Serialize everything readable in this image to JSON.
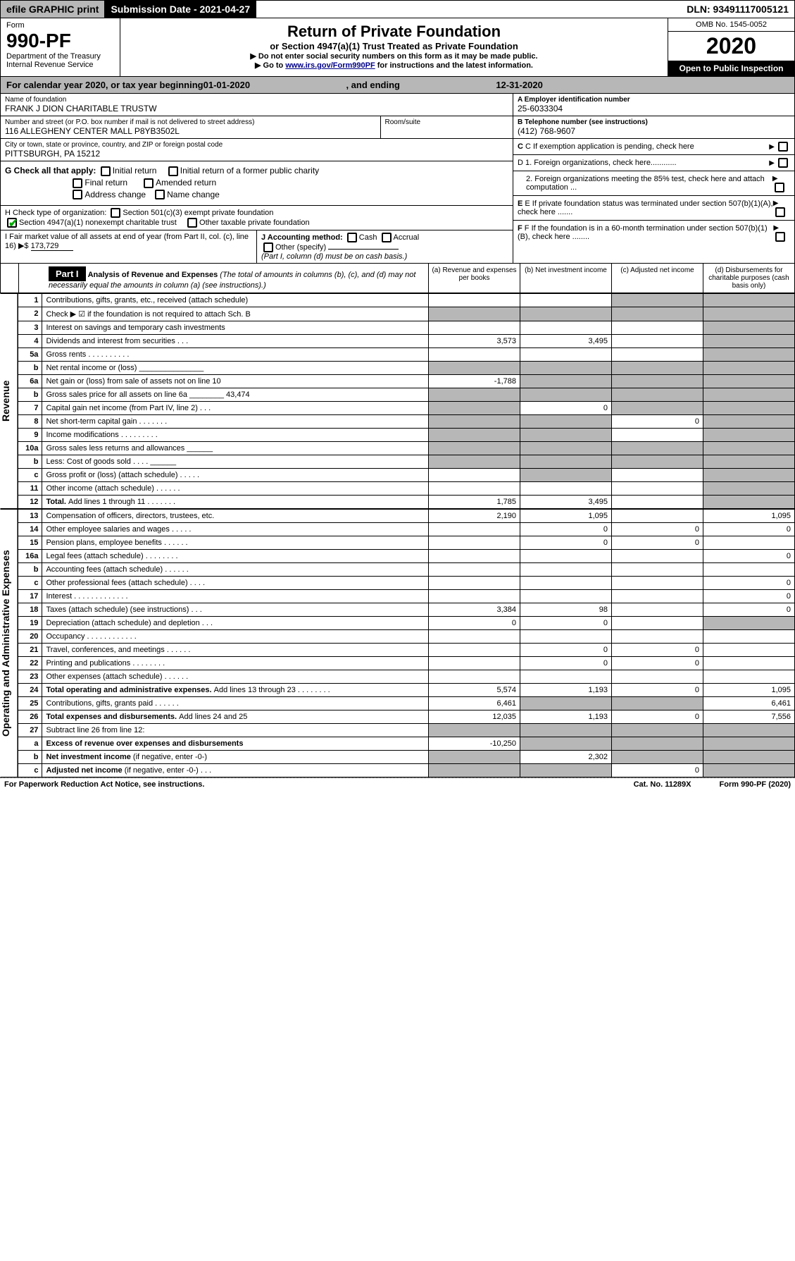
{
  "topbar": {
    "efile": "efile GRAPHIC print",
    "submission": "Submission Date - 2021-04-27",
    "dln": "DLN: 93491117005121"
  },
  "header": {
    "form_label": "Form",
    "form_number": "990-PF",
    "dept": "Department of the Treasury",
    "irs": "Internal Revenue Service",
    "title": "Return of Private Foundation",
    "subtitle": "or Section 4947(a)(1) Trust Treated as Private Foundation",
    "note1": "▶ Do not enter social security numbers on this form as it may be made public.",
    "note2_pre": "▶ Go to ",
    "note2_link": "www.irs.gov/Form990PF",
    "note2_post": " for instructions and the latest information.",
    "omb": "OMB No. 1545-0052",
    "year": "2020",
    "open": "Open to Public Inspection"
  },
  "calendar": {
    "pre": "For calendar year 2020, or tax year beginning ",
    "begin": "01-01-2020",
    "mid": " , and ending ",
    "end": "12-31-2020"
  },
  "name": {
    "label": "Name of foundation",
    "value": "FRANK J DION CHARITABLE TRUSTW"
  },
  "ein": {
    "label": "A Employer identification number",
    "value": "25-6033304"
  },
  "address": {
    "label": "Number and street (or P.O. box number if mail is not delivered to street address)",
    "value": "116 ALLEGHENY CENTER MALL P8YB3502L",
    "room_label": "Room/suite"
  },
  "phone": {
    "label": "B Telephone number (see instructions)",
    "value": "(412) 768-9607"
  },
  "city": {
    "label": "City or town, state or province, country, and ZIP or foreign postal code",
    "value": "PITTSBURGH, PA  15212"
  },
  "exemption": "C If exemption application is pending, check here",
  "g": {
    "label": "G Check all that apply:",
    "initial": "Initial return",
    "initial_former": "Initial return of a former public charity",
    "final": "Final return",
    "amended": "Amended return",
    "address": "Address change",
    "name": "Name change"
  },
  "d": {
    "d1": "D 1. Foreign organizations, check here............",
    "d2": "2. Foreign organizations meeting the 85% test, check here and attach computation ..."
  },
  "h": {
    "label": "H Check type of organization:",
    "s501": "Section 501(c)(3) exempt private foundation",
    "s4947": "Section 4947(a)(1) nonexempt charitable trust",
    "other": "Other taxable private foundation"
  },
  "e": "E If private foundation status was terminated under section 507(b)(1)(A), check here .......",
  "i": {
    "label": "I Fair market value of all assets at end of year (from Part II, col. (c), line 16) ▶$",
    "value": "173,729"
  },
  "j": {
    "label": "J Accounting method:",
    "cash": "Cash",
    "accrual": "Accrual",
    "other": "Other (specify)",
    "note": "(Part I, column (d) must be on cash basis.)"
  },
  "f": "F If the foundation is in a 60-month termination under section 507(b)(1)(B), check here ........",
  "part1": {
    "label": "Part I",
    "title": "Analysis of Revenue and Expenses",
    "note": "(The total of amounts in columns (b), (c), and (d) may not necessarily equal the amounts in column (a) (see instructions).)",
    "col_a": "(a) Revenue and expenses per books",
    "col_b": "(b) Net investment income",
    "col_c": "(c) Adjusted net income",
    "col_d": "(d) Disbursements for charitable purposes (cash basis only)"
  },
  "side_revenue": "Revenue",
  "side_expenses": "Operating and Administrative Expenses",
  "rows": [
    {
      "n": "1",
      "desc": "Contributions, gifts, grants, etc., received (attach schedule)",
      "a": "",
      "b": "",
      "c_grey": true,
      "d_grey": true
    },
    {
      "n": "2",
      "desc": "Check ▶ ☑ if the foundation is not required to attach Sch. B",
      "a_grey": true,
      "b_grey": true,
      "c_grey": true,
      "d_grey": true
    },
    {
      "n": "3",
      "desc": "Interest on savings and temporary cash investments",
      "a": "",
      "b": "",
      "c": "",
      "d_grey": true
    },
    {
      "n": "4",
      "desc": "Dividends and interest from securities   .   .   .",
      "a": "3,573",
      "b": "3,495",
      "c": "",
      "d_grey": true
    },
    {
      "n": "5a",
      "desc": "Gross rents   .   .   .   .   .   .   .   .   .   .",
      "a": "",
      "b": "",
      "c": "",
      "d_grey": true
    },
    {
      "n": "b",
      "desc": "Net rental income or (loss)  _______________",
      "a_grey": true,
      "b_grey": true,
      "c_grey": true,
      "d_grey": true
    },
    {
      "n": "6a",
      "desc": "Net gain or (loss) from sale of assets not on line 10",
      "a": "-1,788",
      "b_grey": true,
      "c_grey": true,
      "d_grey": true
    },
    {
      "n": "b",
      "desc": "Gross sales price for all assets on line 6a ________ 43,474",
      "a_grey": true,
      "b_grey": true,
      "c_grey": true,
      "d_grey": true
    },
    {
      "n": "7",
      "desc": "Capital gain net income (from Part IV, line 2)   .   .   .",
      "a_grey": true,
      "b": "0",
      "c_grey": true,
      "d_grey": true
    },
    {
      "n": "8",
      "desc": "Net short-term capital gain   .   .   .   .   .   .   .",
      "a_grey": true,
      "b_grey": true,
      "c": "0",
      "d_grey": true
    },
    {
      "n": "9",
      "desc": "Income modifications   .   .   .   .   .   .   .   .   .",
      "a_grey": true,
      "b_grey": true,
      "c": "",
      "d_grey": true
    },
    {
      "n": "10a",
      "desc": "Gross sales less returns and allowances  ______",
      "a_grey": true,
      "b_grey": true,
      "c_grey": true,
      "d_grey": true
    },
    {
      "n": "b",
      "desc": "Less: Cost of goods sold   .   .   .   .  ______",
      "a_grey": true,
      "b_grey": true,
      "c_grey": true,
      "d_grey": true
    },
    {
      "n": "c",
      "desc": "Gross profit or (loss) (attach schedule)   .   .   .   .   .",
      "a": "",
      "b_grey": true,
      "c": "",
      "d_grey": true
    },
    {
      "n": "11",
      "desc": "Other income (attach schedule)   .   .   .   .   .   .",
      "a": "",
      "b": "",
      "c": "",
      "d_grey": true
    },
    {
      "n": "12",
      "desc_bold": "Total. ",
      "desc": "Add lines 1 through 11   .   .   .   .   .   .   .",
      "a": "1,785",
      "b": "3,495",
      "c": "",
      "d_grey": true
    },
    {
      "n": "13",
      "desc": "Compensation of officers, directors, trustees, etc.",
      "a": "2,190",
      "b": "1,095",
      "c": "",
      "d": "1,095"
    },
    {
      "n": "14",
      "desc": "Other employee salaries and wages   .   .   .   .   .",
      "a": "",
      "b": "0",
      "c": "0",
      "d": "0"
    },
    {
      "n": "15",
      "desc": "Pension plans, employee benefits   .   .   .   .   .   .",
      "a": "",
      "b": "0",
      "c": "0",
      "d": ""
    },
    {
      "n": "16a",
      "desc": "Legal fees (attach schedule)   .   .   .   .   .   .   .   .",
      "a": "",
      "b": "",
      "c": "",
      "d": "0"
    },
    {
      "n": "b",
      "desc": "Accounting fees (attach schedule)   .   .   .   .   .   .",
      "a": "",
      "b": "",
      "c": "",
      "d": ""
    },
    {
      "n": "c",
      "desc": "Other professional fees (attach schedule)   .   .   .   .",
      "a": "",
      "b": "",
      "c": "",
      "d": "0"
    },
    {
      "n": "17",
      "desc": "Interest   .   .   .   .   .   .   .   .   .   .   .   .   .",
      "a": "",
      "b": "",
      "c": "",
      "d": "0"
    },
    {
      "n": "18",
      "desc": "Taxes (attach schedule) (see instructions)   .   .   .",
      "a": "3,384",
      "b": "98",
      "c": "",
      "d": "0"
    },
    {
      "n": "19",
      "desc": "Depreciation (attach schedule) and depletion   .   .   .",
      "a": "0",
      "b": "0",
      "c": "",
      "d_grey": true
    },
    {
      "n": "20",
      "desc": "Occupancy   .   .   .   .   .   .   .   .   .   .   .   .",
      "a": "",
      "b": "",
      "c": "",
      "d": ""
    },
    {
      "n": "21",
      "desc": "Travel, conferences, and meetings   .   .   .   .   .   .",
      "a": "",
      "b": "0",
      "c": "0",
      "d": ""
    },
    {
      "n": "22",
      "desc": "Printing and publications   .   .   .   .   .   .   .   .",
      "a": "",
      "b": "0",
      "c": "0",
      "d": ""
    },
    {
      "n": "23",
      "desc": "Other expenses (attach schedule)   .   .   .   .   .   .",
      "a": "",
      "b": "",
      "c": "",
      "d": ""
    },
    {
      "n": "24",
      "desc_bold": "Total operating and administrative expenses. ",
      "desc": "Add lines 13 through 23   .   .   .   .   .   .   .   .",
      "a": "5,574",
      "b": "1,193",
      "c": "0",
      "d": "1,095"
    },
    {
      "n": "25",
      "desc": "Contributions, gifts, grants paid   .   .   .   .   .   .",
      "a": "6,461",
      "b_grey": true,
      "c_grey": true,
      "d": "6,461"
    },
    {
      "n": "26",
      "desc_bold": "Total expenses and disbursements. ",
      "desc": "Add lines 24 and 25",
      "a": "12,035",
      "b": "1,193",
      "c": "0",
      "d": "7,556"
    },
    {
      "n": "27",
      "desc": "Subtract line 26 from line 12:",
      "a_grey": true,
      "b_grey": true,
      "c_grey": true,
      "d_grey": true
    },
    {
      "n": "a",
      "desc_bold": "Excess of revenue over expenses and disbursements",
      "desc": "",
      "a": "-10,250",
      "b_grey": true,
      "c_grey": true,
      "d_grey": true
    },
    {
      "n": "b",
      "desc_bold": "Net investment income ",
      "desc": "(if negative, enter -0-)",
      "a_grey": true,
      "b": "2,302",
      "c_grey": true,
      "d_grey": true
    },
    {
      "n": "c",
      "desc_bold": "Adjusted net income ",
      "desc": "(if negative, enter -0-)   .   .   .",
      "a_grey": true,
      "b_grey": true,
      "c": "0",
      "d_grey": true
    }
  ],
  "footer": {
    "left": "For Paperwork Reduction Act Notice, see instructions.",
    "center": "Cat. No. 11289X",
    "right": "Form 990-PF (2020)"
  }
}
